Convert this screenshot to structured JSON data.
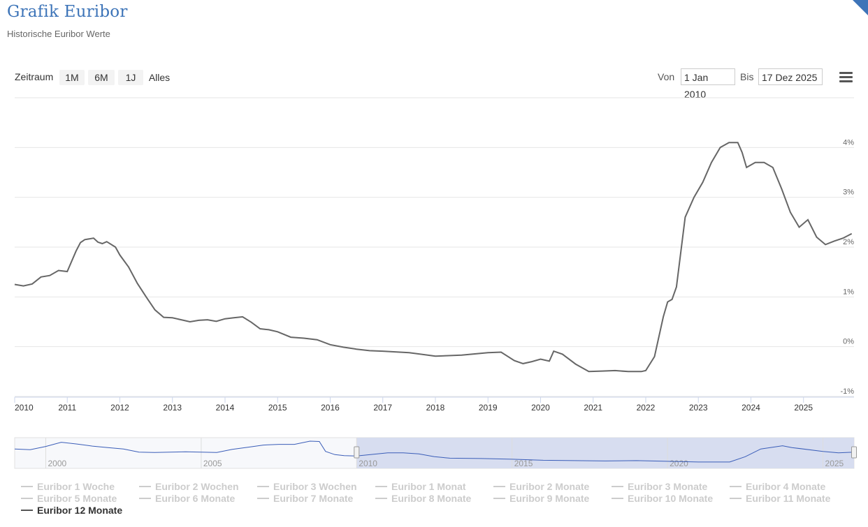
{
  "header": {
    "title": "Grafik Euribor",
    "subtitle": "Historische Euribor Werte"
  },
  "range_selector": {
    "label": "Zeitraum",
    "buttons": [
      "1M",
      "6M",
      "1J",
      "Alles"
    ]
  },
  "date_range": {
    "from_label": "Von",
    "from_value": "1 Jan 2010",
    "to_label": "Bis",
    "to_value": "17 Dez 2025"
  },
  "colors": {
    "accent": "#3d74b8",
    "series_line": "#666666",
    "navigator_line": "#3a5db8",
    "navigator_mask": "#d3d9ee"
  },
  "chart_data": {
    "type": "line",
    "title": "",
    "xlabel": "",
    "ylabel": "",
    "x_range": [
      "2010-01-01",
      "2025-12-17"
    ],
    "ylim": [
      -1,
      5
    ],
    "y_ticks": [
      "-1%",
      "0%",
      "1%",
      "2%",
      "3%",
      "4%"
    ],
    "x_ticks": [
      "2010",
      "2011",
      "2012",
      "2013",
      "2014",
      "2015",
      "2016",
      "2017",
      "2018",
      "2019",
      "2020",
      "2021",
      "2022",
      "2023",
      "2024",
      "2025"
    ],
    "grid": true,
    "legend_position": "bottom",
    "series": [
      {
        "name": "Euribor 12 Monate",
        "x": [
          "2010-01",
          "2010-03",
          "2010-05",
          "2010-07",
          "2010-09",
          "2010-11",
          "2011-01",
          "2011-03",
          "2011-04",
          "2011-05",
          "2011-07",
          "2011-08",
          "2011-09",
          "2011-10",
          "2011-12",
          "2012-01",
          "2012-03",
          "2012-05",
          "2012-07",
          "2012-09",
          "2012-11",
          "2013-01",
          "2013-03",
          "2013-05",
          "2013-07",
          "2013-09",
          "2013-11",
          "2014-01",
          "2014-03",
          "2014-05",
          "2014-07",
          "2014-09",
          "2014-11",
          "2015-01",
          "2015-04",
          "2015-07",
          "2015-10",
          "2016-01",
          "2016-04",
          "2016-07",
          "2016-10",
          "2017-01",
          "2017-07",
          "2018-01",
          "2018-07",
          "2019-01",
          "2019-04",
          "2019-07",
          "2019-09",
          "2019-11",
          "2020-01",
          "2020-03",
          "2020-04",
          "2020-06",
          "2020-09",
          "2020-12",
          "2021-03",
          "2021-06",
          "2021-09",
          "2021-12",
          "2022-01",
          "2022-03",
          "2022-05",
          "2022-06",
          "2022-07",
          "2022-08",
          "2022-10",
          "2022-12",
          "2023-02",
          "2023-04",
          "2023-06",
          "2023-08",
          "2023-10",
          "2023-11",
          "2023-12",
          "2024-02",
          "2024-04",
          "2024-06",
          "2024-08",
          "2024-10",
          "2024-12",
          "2025-02",
          "2025-04",
          "2025-06",
          "2025-08",
          "2025-10",
          "2025-12"
        ],
        "y": [
          1.25,
          1.22,
          1.26,
          1.4,
          1.43,
          1.53,
          1.51,
          1.92,
          2.09,
          2.15,
          2.18,
          2.1,
          2.07,
          2.11,
          2.0,
          1.84,
          1.6,
          1.27,
          1.0,
          0.74,
          0.59,
          0.58,
          0.54,
          0.5,
          0.53,
          0.54,
          0.51,
          0.56,
          0.58,
          0.6,
          0.49,
          0.36,
          0.34,
          0.3,
          0.19,
          0.17,
          0.14,
          0.04,
          -0.01,
          -0.05,
          -0.08,
          -0.09,
          -0.12,
          -0.19,
          -0.17,
          -0.12,
          -0.11,
          -0.28,
          -0.34,
          -0.3,
          -0.25,
          -0.29,
          -0.09,
          -0.15,
          -0.35,
          -0.5,
          -0.49,
          -0.48,
          -0.5,
          -0.5,
          -0.48,
          -0.2,
          0.6,
          0.9,
          0.95,
          1.2,
          2.6,
          3.0,
          3.3,
          3.7,
          4.0,
          4.1,
          4.1,
          3.9,
          3.6,
          3.7,
          3.7,
          3.6,
          3.17,
          2.7,
          2.4,
          2.55,
          2.2,
          2.05,
          2.12,
          2.18,
          2.27
        ]
      }
    ]
  },
  "navigator": {
    "x_labels": [
      "2000",
      "2005",
      "2010",
      "2015",
      "2020",
      "2025"
    ],
    "x_range": [
      1999,
      2026
    ],
    "selected_range": [
      2010,
      2026
    ],
    "series": {
      "x": [
        1999.0,
        1999.5,
        2000.0,
        2000.5,
        2001.0,
        2001.5,
        2002.0,
        2002.5,
        2003.0,
        2003.5,
        2004.0,
        2004.5,
        2005.0,
        2005.5,
        2006.0,
        2006.5,
        2007.0,
        2007.5,
        2008.0,
        2008.5,
        2008.8,
        2009.0,
        2009.3,
        2009.6,
        2010.0,
        2011.0,
        2011.5,
        2012.0,
        2012.5,
        2013.0,
        2014.0,
        2015.0,
        2016.0,
        2017.0,
        2018.0,
        2019.0,
        2020.0,
        2021.0,
        2022.0,
        2022.5,
        2023.0,
        2023.7,
        2024.0,
        2025.0,
        2025.5,
        2026.0
      ],
      "y": [
        3.2,
        3.0,
        3.9,
        5.1,
        4.6,
        4.0,
        3.6,
        3.2,
        2.3,
        2.2,
        2.3,
        2.4,
        2.3,
        2.2,
        3.1,
        3.7,
        4.3,
        4.5,
        4.5,
        5.4,
        5.3,
        2.5,
        1.6,
        1.3,
        1.2,
        2.1,
        2.1,
        1.8,
        1.0,
        0.6,
        0.5,
        0.3,
        0.0,
        -0.1,
        -0.2,
        -0.1,
        -0.3,
        -0.5,
        -0.5,
        1.0,
        3.2,
        4.1,
        3.6,
        2.5,
        2.1,
        2.3
      ]
    }
  },
  "legend": {
    "items": [
      "Euribor 1 Woche",
      "Euribor 2 Wochen",
      "Euribor 3 Wochen",
      "Euribor 1 Monat",
      "Euribor 2 Monate",
      "Euribor 3 Monate",
      "Euribor 4 Monate",
      "Euribor 5 Monate",
      "Euribor 6 Monate",
      "Euribor 7 Monate",
      "Euribor 8 Monate",
      "Euribor 9 Monate",
      "Euribor 10 Monate",
      "Euribor 11 Monate",
      "Euribor 12 Monate"
    ],
    "active": "Euribor 12 Monate"
  }
}
